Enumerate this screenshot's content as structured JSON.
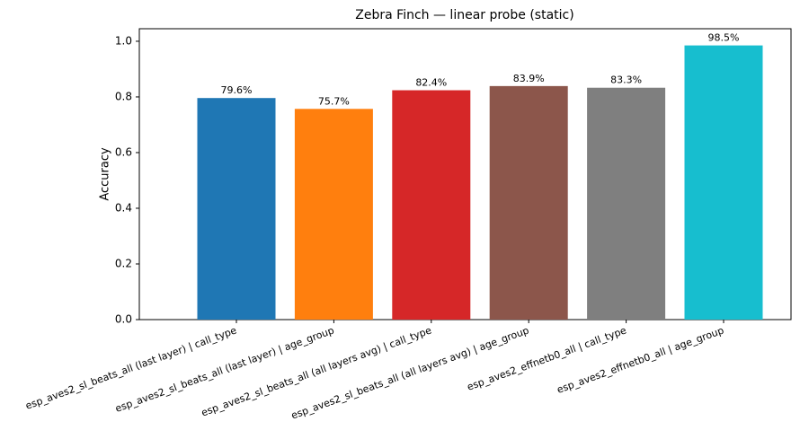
{
  "chart_data": {
    "type": "bar",
    "title": "Zebra Finch — linear probe (static)",
    "y_label": "Accuracy",
    "categories": [
      "esp_aves2_sl_beats_all (last layer) | call_type",
      "esp_aves2_sl_beats_all (last layer) | age_group",
      "esp_aves2_sl_beats_all (all layers avg) | call_type",
      "esp_aves2_sl_beats_all (all layers avg) | age_group",
      "esp_aves2_effnetb0_all | call_type",
      "esp_aves2_effnetb0_all | age_group"
    ],
    "values": [
      0.796,
      0.757,
      0.824,
      0.839,
      0.833,
      0.985
    ],
    "value_labels": [
      "79.6%",
      "75.7%",
      "82.4%",
      "83.9%",
      "83.3%",
      "98.5%"
    ],
    "colors": [
      "#1f77b4",
      "#ff7f0e",
      "#d62728",
      "#8c564b",
      "#7f7f7f",
      "#17becf"
    ],
    "ylim": [
      0,
      1.045
    ],
    "yticks": [
      {
        "value": 0,
        "label": "0.0"
      },
      0.2,
      0.4,
      0.6,
      0.8,
      {
        "value": 1,
        "label": "1.0"
      }
    ],
    "grid": false
  }
}
